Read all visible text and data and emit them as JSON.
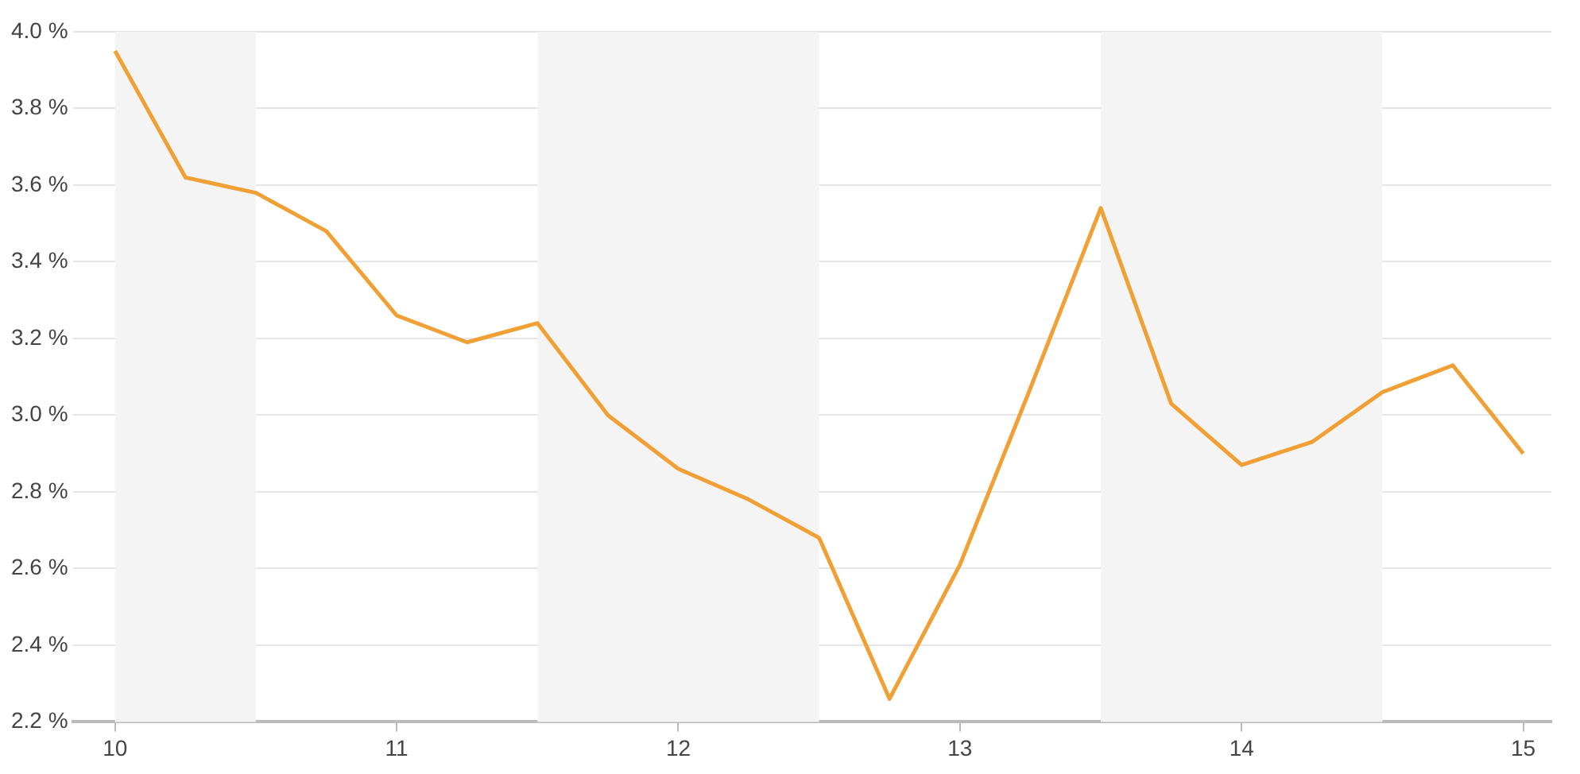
{
  "chart_data": {
    "type": "line",
    "x": [
      10,
      10.25,
      10.5,
      10.75,
      11,
      11.25,
      11.5,
      11.75,
      12,
      12.25,
      12.5,
      12.75,
      13,
      13.25,
      13.5,
      13.75,
      14,
      14.25,
      14.5,
      14.75,
      15
    ],
    "series": [
      {
        "color": "#f0a035",
        "values": [
          3.95,
          3.62,
          3.58,
          3.48,
          3.26,
          3.19,
          3.24,
          3.0,
          2.86,
          2.78,
          2.68,
          2.26,
          2.61,
          3.07,
          3.54,
          3.03,
          2.87,
          2.93,
          3.06,
          3.13,
          2.9
        ]
      }
    ],
    "xlim": [
      9.85,
      15.1
    ],
    "xticks": [
      10,
      11,
      12,
      13,
      14,
      15
    ],
    "ylim": [
      2.2,
      4.0
    ],
    "yticks": [
      {
        "value": 2.2,
        "label": "2.2 %"
      },
      {
        "value": 2.4,
        "label": "2.4 %"
      },
      {
        "value": 2.6,
        "label": "2.6 %"
      },
      {
        "value": 2.8,
        "label": "2.8 %"
      },
      {
        "value": 3.0,
        "label": "3.0 %"
      },
      {
        "value": 3.2,
        "label": "3.2 %"
      },
      {
        "value": 3.4,
        "label": "3.4 %"
      },
      {
        "value": 3.6,
        "label": "3.6 %"
      },
      {
        "value": 3.8,
        "label": "3.8 %"
      },
      {
        "value": 4.0,
        "label": "4.0 %"
      }
    ],
    "bands": [
      {
        "axis": "x",
        "from": 10,
        "to": 10.5,
        "color": "#f4f4f4"
      },
      {
        "axis": "x",
        "from": 11.5,
        "to": 12.5,
        "color": "#f4f4f4"
      },
      {
        "axis": "x",
        "from": 13.5,
        "to": 14.5,
        "color": "#f4f4f4"
      }
    ],
    "grid": "y",
    "legend": false,
    "marker": "none",
    "line_style": "solid"
  }
}
